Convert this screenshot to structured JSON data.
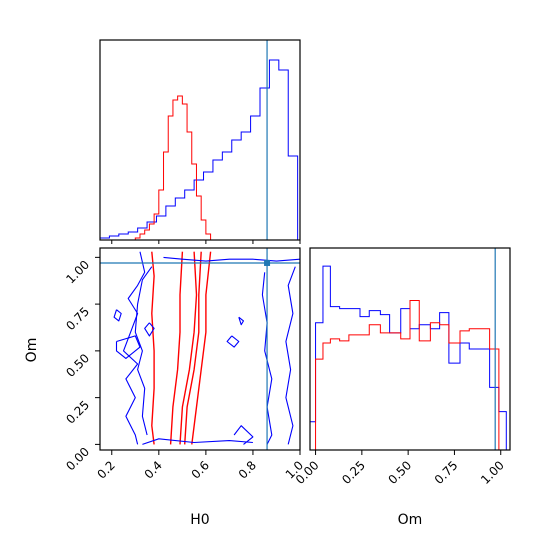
{
  "chart_data": [
    {
      "type": "histogram",
      "panel": "H0 marginal",
      "xlim": [
        0.15,
        1.0
      ],
      "truth": 0.86,
      "truth_color": "#1f77b4",
      "series": [
        {
          "color": "#0000ff",
          "edges": [
            0.15,
            0.19,
            0.23,
            0.27,
            0.31,
            0.35,
            0.39,
            0.43,
            0.47,
            0.51,
            0.55,
            0.59,
            0.63,
            0.67,
            0.71,
            0.75,
            0.79,
            0.83,
            0.87,
            0.91,
            0.95,
            0.99
          ],
          "values": [
            0.01,
            0.02,
            0.03,
            0.04,
            0.06,
            0.09,
            0.12,
            0.17,
            0.21,
            0.25,
            0.3,
            0.34,
            0.4,
            0.44,
            0.5,
            0.54,
            0.62,
            0.76,
            0.9,
            0.85,
            0.42
          ]
        },
        {
          "color": "#ff0000",
          "edges": [
            0.3,
            0.32,
            0.34,
            0.36,
            0.38,
            0.4,
            0.42,
            0.44,
            0.46,
            0.48,
            0.5,
            0.52,
            0.54,
            0.56,
            0.58,
            0.6,
            0.62
          ],
          "values": [
            0.01,
            0.03,
            0.05,
            0.08,
            0.13,
            0.25,
            0.44,
            0.62,
            0.7,
            0.72,
            0.68,
            0.54,
            0.38,
            0.22,
            0.1,
            0.03
          ]
        }
      ]
    },
    {
      "type": "contour",
      "panel": "H0 vs Om",
      "xlabel": "H0",
      "ylabel": "Om",
      "xlim": [
        0.15,
        1.0
      ],
      "ylim": [
        -0.03,
        1.05
      ],
      "xticks": [
        "0.2",
        "0.4",
        "0.6",
        "0.8",
        "1.0"
      ],
      "yticks": [
        "0.00",
        "0.25",
        "0.50",
        "0.75",
        "1.00"
      ],
      "truth": {
        "x": 0.86,
        "y": 0.97
      },
      "truth_color": "#1f77b4",
      "series": [
        {
          "color": "#ff0000",
          "paths": [
            [
              [
                0.37,
                1.03
              ],
              [
                0.38,
                0.9
              ],
              [
                0.37,
                0.7
              ],
              [
                0.38,
                0.5
              ],
              [
                0.38,
                0.3
              ],
              [
                0.37,
                0.1
              ],
              [
                0.38,
                0.0
              ]
            ],
            [
              [
                0.49,
                0.0
              ],
              [
                0.5,
                0.2
              ],
              [
                0.53,
                0.4
              ],
              [
                0.55,
                0.6
              ],
              [
                0.56,
                0.8
              ],
              [
                0.55,
                1.03
              ]
            ],
            [
              [
                0.45,
                0.0
              ],
              [
                0.46,
                0.2
              ],
              [
                0.48,
                0.4
              ],
              [
                0.49,
                0.6
              ],
              [
                0.49,
                0.8
              ],
              [
                0.5,
                1.03
              ]
            ],
            [
              [
                0.58,
                1.03
              ],
              [
                0.57,
                0.8
              ],
              [
                0.57,
                0.6
              ],
              [
                0.55,
                0.4
              ],
              [
                0.52,
                0.2
              ],
              [
                0.51,
                0.0
              ]
            ],
            [
              [
                0.62,
                1.03
              ],
              [
                0.6,
                0.8
              ],
              [
                0.6,
                0.6
              ],
              [
                0.58,
                0.4
              ],
              [
                0.56,
                0.2
              ],
              [
                0.54,
                0.0
              ]
            ]
          ]
        },
        {
          "color": "#0000ff",
          "paths": [
            [
              [
                0.32,
                1.03
              ],
              [
                0.34,
                0.92
              ],
              [
                0.31,
                0.85
              ],
              [
                0.27,
                0.78
              ],
              [
                0.31,
                0.7
              ],
              [
                0.28,
                0.6
              ],
              [
                0.25,
                0.5
              ],
              [
                0.31,
                0.43
              ],
              [
                0.26,
                0.35
              ],
              [
                0.3,
                0.25
              ],
              [
                0.26,
                0.15
              ],
              [
                0.3,
                0.05
              ],
              [
                0.31,
                0.0
              ]
            ],
            [
              [
                0.33,
                0.0
              ],
              [
                0.4,
                0.03
              ],
              [
                0.55,
                0.01
              ],
              [
                0.7,
                0.02
              ],
              [
                0.8,
                0.01
              ]
            ],
            [
              [
                0.42,
                1.0
              ],
              [
                0.5,
                0.99
              ],
              [
                0.6,
                0.98
              ],
              [
                0.7,
                0.99
              ],
              [
                0.8,
                0.99
              ],
              [
                0.9,
                0.98
              ],
              [
                1.0,
                0.99
              ]
            ],
            [
              [
                0.85,
                0.92
              ],
              [
                0.84,
                0.8
              ],
              [
                0.86,
                0.65
              ],
              [
                0.85,
                0.5
              ],
              [
                0.88,
                0.35
              ],
              [
                0.86,
                0.2
              ],
              [
                0.88,
                0.05
              ],
              [
                0.86,
                0.0
              ]
            ],
            [
              [
                0.98,
                0.95
              ],
              [
                0.95,
                0.85
              ],
              [
                0.97,
                0.7
              ],
              [
                0.94,
                0.55
              ],
              [
                0.96,
                0.4
              ],
              [
                0.94,
                0.25
              ],
              [
                0.97,
                0.1
              ],
              [
                0.95,
                0.0
              ]
            ],
            [
              [
                0.37,
                0.95
              ],
              [
                0.33,
                0.88
              ],
              [
                0.31,
                0.75
              ],
              [
                0.3,
                0.6
              ],
              [
                0.33,
                0.5
              ],
              [
                0.31,
                0.4
              ],
              [
                0.34,
                0.3
              ],
              [
                0.33,
                0.15
              ],
              [
                0.35,
                0.05
              ]
            ],
            [
              [
                0.72,
                0.05
              ],
              [
                0.75,
                0.1
              ],
              [
                0.8,
                0.04
              ],
              [
                0.76,
                0.0
              ]
            ],
            [
              [
                0.22,
                0.72
              ],
              [
                0.24,
                0.7
              ],
              [
                0.23,
                0.66
              ],
              [
                0.21,
                0.68
              ],
              [
                0.22,
                0.72
              ]
            ],
            [
              [
                0.71,
                0.58
              ],
              [
                0.74,
                0.55
              ],
              [
                0.72,
                0.52
              ],
              [
                0.69,
                0.55
              ],
              [
                0.71,
                0.58
              ]
            ],
            [
              [
                0.74,
                0.68
              ],
              [
                0.76,
                0.66
              ],
              [
                0.75,
                0.64
              ],
              [
                0.74,
                0.68
              ]
            ],
            [
              [
                0.36,
                0.65
              ],
              [
                0.38,
                0.62
              ],
              [
                0.36,
                0.58
              ],
              [
                0.34,
                0.62
              ],
              [
                0.36,
                0.65
              ]
            ],
            [
              [
                0.22,
                0.55
              ],
              [
                0.3,
                0.58
              ],
              [
                0.32,
                0.52
              ],
              [
                0.26,
                0.46
              ],
              [
                0.22,
                0.5
              ],
              [
                0.22,
                0.55
              ]
            ]
          ]
        }
      ]
    },
    {
      "type": "histogram",
      "panel": "Om marginal",
      "xlabel": "Om",
      "xlim": [
        -0.03,
        1.05
      ],
      "xticks": [
        "0.00",
        "0.25",
        "0.50",
        "0.75",
        "1.00"
      ],
      "truth": 0.97,
      "truth_color": "#1f77b4",
      "series": [
        {
          "color": "#0000ff",
          "edges": [
            -0.03,
            0.0,
            0.04,
            0.08,
            0.13,
            0.18,
            0.24,
            0.29,
            0.35,
            0.4,
            0.46,
            0.51,
            0.56,
            0.62,
            0.67,
            0.72,
            0.78,
            0.83,
            0.88,
            0.94,
            0.99,
            1.03
          ],
          "values": [
            0.14,
            0.63,
            0.91,
            0.71,
            0.7,
            0.7,
            0.66,
            0.69,
            0.67,
            0.58,
            0.7,
            0.6,
            0.62,
            0.6,
            0.68,
            0.43,
            0.53,
            0.5,
            0.5,
            0.31,
            0.19
          ]
        },
        {
          "color": "#ff0000",
          "edges": [
            0.0,
            0.04,
            0.08,
            0.13,
            0.18,
            0.24,
            0.29,
            0.35,
            0.4,
            0.46,
            0.51,
            0.56,
            0.62,
            0.67,
            0.72,
            0.78,
            0.83,
            0.88,
            0.94,
            0.99
          ],
          "values": [
            0.45,
            0.53,
            0.55,
            0.54,
            0.57,
            0.57,
            0.62,
            0.58,
            0.58,
            0.55,
            0.74,
            0.54,
            0.63,
            0.62,
            0.53,
            0.59,
            0.6,
            0.6,
            0.5
          ]
        }
      ]
    }
  ]
}
